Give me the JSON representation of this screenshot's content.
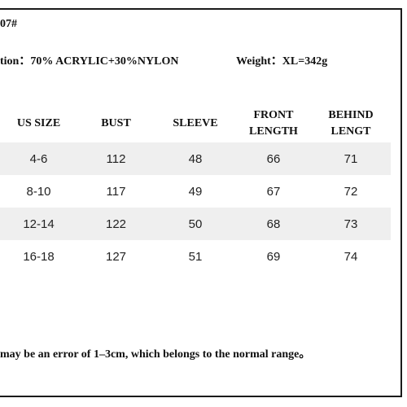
{
  "header": {
    "code": "07#",
    "composition": "tion：70% ACRYLIC+30%NYLON",
    "weight": "Weight：XL=342g"
  },
  "table": {
    "columns": [
      "US SIZE",
      "BUST",
      "SLEEVE",
      "FRONT\nLENGTH",
      "BEHIND\nLENGT"
    ],
    "rows": [
      [
        "4-6",
        "112",
        "48",
        "66",
        "71"
      ],
      [
        "8-10",
        "117",
        "49",
        "67",
        "72"
      ],
      [
        "12-14",
        "122",
        "50",
        "68",
        "73"
      ],
      [
        "16-18",
        "127",
        "51",
        "69",
        "74"
      ]
    ]
  },
  "footer": {
    "note": "may be an error of 1–3cm, which belongs to the normal range。"
  }
}
